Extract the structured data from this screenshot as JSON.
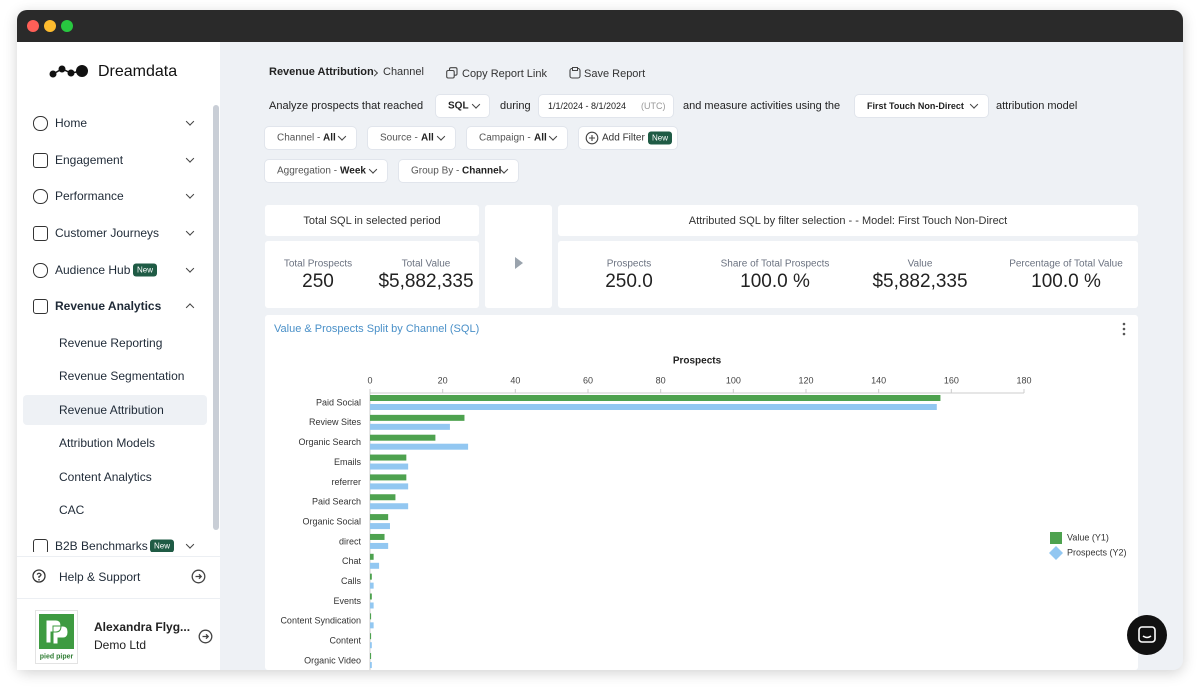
{
  "sidebar": {
    "brand": "Dreamdata",
    "nav": [
      {
        "label": "Home"
      },
      {
        "label": "Engagement"
      },
      {
        "label": "Performance"
      },
      {
        "label": "Customer Journeys"
      },
      {
        "label": "Audience Hub",
        "badge": "New"
      },
      {
        "label": "Revenue Analytics"
      }
    ],
    "subnav": [
      "Revenue Reporting",
      "Revenue Segmentation",
      "Revenue Attribution",
      "Attribution Models",
      "Content Analytics",
      "CAC"
    ],
    "clipped_item": {
      "label": "B2B Benchmarks",
      "badge": "New"
    },
    "help": "Help & Support",
    "user": {
      "name": "Alexandra Flyg...",
      "org": "Demo Ltd",
      "logo_text": "pied piper"
    }
  },
  "header": {
    "breadcrumb": [
      "Revenue Attribution",
      "Channel"
    ],
    "actions": [
      "Copy Report Link",
      "Save Report"
    ]
  },
  "query": {
    "lead": "Analyze prospects that reached",
    "stage": "SQL",
    "during": "during",
    "dates": "1/1/2024 - 8/1/2024",
    "timezone": "(UTC)",
    "middle": "and measure activities using the",
    "model": "First Touch Non-Direct",
    "tail": "attribution model"
  },
  "filters": [
    {
      "label": "Channel -",
      "value": "All"
    },
    {
      "label": "Source -",
      "value": "All"
    },
    {
      "label": "Campaign -",
      "value": "All"
    }
  ],
  "add_filter": {
    "label": "Add Filter",
    "badge": "New"
  },
  "grouping": [
    {
      "label": "Aggregation -",
      "value": "Week"
    },
    {
      "label": "Group By -",
      "value": "Channel"
    }
  ],
  "summary": {
    "total": {
      "title": "Total SQL in selected period",
      "stats": [
        {
          "label": "Total Prospects",
          "value": "250"
        },
        {
          "label": "Total Value",
          "value": "$5,882,335"
        }
      ]
    },
    "attributed": {
      "title": "Attributed SQL by filter selection - - Model: First Touch Non-Direct",
      "stats": [
        {
          "label": "Prospects",
          "value": "250.0"
        },
        {
          "label": "Share of Total Prospects",
          "value": "100.0 %"
        },
        {
          "label": "Value",
          "value": "$5,882,335"
        },
        {
          "label": "Percentage of Total Value",
          "value": "100.0 %"
        }
      ]
    }
  },
  "chart_data": {
    "type": "bar",
    "orientation": "horizontal",
    "title": "Value & Prospects Split by Channel (SQL)",
    "x_label": "Prospects",
    "categories": [
      "Paid Social",
      "Review Sites",
      "Organic Search",
      "Emails",
      "referrer",
      "Paid Search",
      "Organic Social",
      "direct",
      "Chat",
      "Calls",
      "Events",
      "Content Syndication",
      "Content",
      "Organic Video"
    ],
    "series": [
      {
        "name": "Value (Y1)",
        "color": "#4ea24f",
        "values": [
          157,
          26,
          18,
          10,
          10,
          7,
          5,
          4,
          1,
          0.5,
          0.5,
          0.3,
          0.3,
          0.3
        ]
      },
      {
        "name": "Prospects (Y2)",
        "color": "#92c7f1",
        "values": [
          156,
          22,
          27,
          10.5,
          10.5,
          10.5,
          5.5,
          5,
          2.5,
          1,
          1,
          1,
          0.5,
          0.5
        ]
      }
    ],
    "xlim": [
      0,
      180
    ],
    "xticks": [
      0,
      20,
      40,
      60,
      80,
      100,
      120,
      140,
      160,
      180
    ],
    "legend": "right"
  }
}
